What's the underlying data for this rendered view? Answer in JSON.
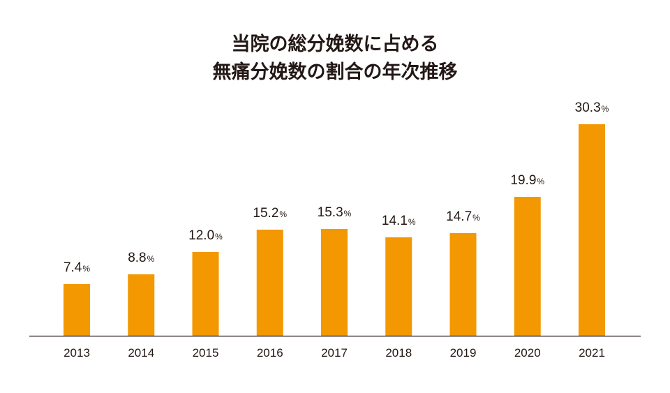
{
  "chart_data": {
    "type": "bar",
    "title_lines": [
      "当院の総分娩数に占める",
      "無痛分娩数の割合の年次推移"
    ],
    "categories": [
      "2013",
      "2014",
      "2015",
      "2016",
      "2017",
      "2018",
      "2019",
      "2020",
      "2021"
    ],
    "values": [
      7.4,
      8.8,
      12.0,
      15.2,
      15.3,
      14.1,
      14.7,
      19.9,
      30.3
    ],
    "value_labels": [
      "7.4",
      "8.8",
      "12.0",
      "15.2",
      "15.3",
      "14.1",
      "14.7",
      "19.9",
      "30.3"
    ],
    "unit": "%",
    "ylim": [
      0,
      30.3
    ],
    "grid": false,
    "bar_color": "#f39800",
    "axis_color": "#231815"
  }
}
